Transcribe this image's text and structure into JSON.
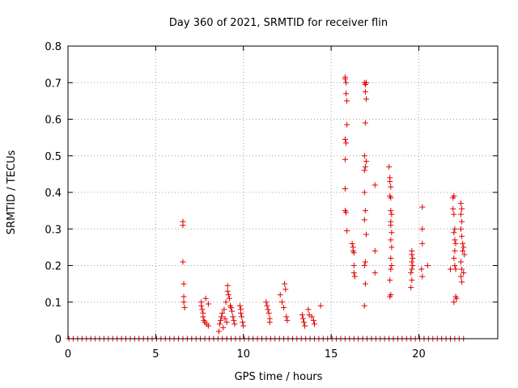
{
  "chart_data": {
    "type": "scatter",
    "title": "Day 360 of 2021, SRMTID for receiver flin",
    "xlabel": "GPS time / hours",
    "ylabel": "SRMTID / TECUs",
    "xlim": [
      0,
      24.5
    ],
    "ylim": [
      0,
      0.8
    ],
    "xticks": [
      0,
      5,
      10,
      15,
      20
    ],
    "xtick_labels": [
      "0",
      "5",
      "10",
      "15",
      "20"
    ],
    "yticks": [
      0,
      0.1,
      0.2,
      0.3,
      0.4,
      0.5,
      0.6,
      0.7,
      0.8
    ],
    "ytick_labels": [
      "0",
      "0.1",
      "0.2",
      "0.3",
      "0.4",
      "0.5",
      "0.6",
      "0.7",
      "0.8"
    ],
    "grid": true,
    "marker": "+",
    "color": "#e00000",
    "series": [
      {
        "name": "SRMTID",
        "zero_baseline": {
          "x_start": 0.05,
          "x_end": 22.6,
          "step": 0.25,
          "y": 0
        },
        "points": [
          [
            6.55,
            0.32
          ],
          [
            6.55,
            0.31
          ],
          [
            6.55,
            0.21
          ],
          [
            6.6,
            0.15
          ],
          [
            6.6,
            0.115
          ],
          [
            6.6,
            0.1
          ],
          [
            6.65,
            0.085
          ],
          [
            7.6,
            0.1
          ],
          [
            7.6,
            0.09
          ],
          [
            7.65,
            0.08
          ],
          [
            7.7,
            0.07
          ],
          [
            7.7,
            0.06
          ],
          [
            7.75,
            0.05
          ],
          [
            7.8,
            0.045
          ],
          [
            7.85,
            0.11
          ],
          [
            7.9,
            0.04
          ],
          [
            8.0,
            0.095
          ],
          [
            8.0,
            0.035
          ],
          [
            8.6,
            0.02
          ],
          [
            8.65,
            0.04
          ],
          [
            8.7,
            0.05
          ],
          [
            8.75,
            0.06
          ],
          [
            8.8,
            0.07
          ],
          [
            8.85,
            0.03
          ],
          [
            8.9,
            0.08
          ],
          [
            8.95,
            0.055
          ],
          [
            9.0,
            0.1
          ],
          [
            9.05,
            0.045
          ],
          [
            9.1,
            0.145
          ],
          [
            9.1,
            0.13
          ],
          [
            9.15,
            0.12
          ],
          [
            9.2,
            0.11
          ],
          [
            9.25,
            0.09
          ],
          [
            9.3,
            0.085
          ],
          [
            9.35,
            0.075
          ],
          [
            9.4,
            0.06
          ],
          [
            9.45,
            0.05
          ],
          [
            9.5,
            0.04
          ],
          [
            9.8,
            0.09
          ],
          [
            9.85,
            0.08
          ],
          [
            9.85,
            0.07
          ],
          [
            9.9,
            0.06
          ],
          [
            9.95,
            0.045
          ],
          [
            10.0,
            0.035
          ],
          [
            11.3,
            0.1
          ],
          [
            11.35,
            0.09
          ],
          [
            11.4,
            0.08
          ],
          [
            11.45,
            0.07
          ],
          [
            11.5,
            0.055
          ],
          [
            11.5,
            0.045
          ],
          [
            12.1,
            0.12
          ],
          [
            12.2,
            0.1
          ],
          [
            12.3,
            0.085
          ],
          [
            12.35,
            0.15
          ],
          [
            12.4,
            0.135
          ],
          [
            12.45,
            0.06
          ],
          [
            12.5,
            0.05
          ],
          [
            13.35,
            0.065
          ],
          [
            13.4,
            0.055
          ],
          [
            13.45,
            0.045
          ],
          [
            13.5,
            0.035
          ],
          [
            13.7,
            0.08
          ],
          [
            13.75,
            0.065
          ],
          [
            13.9,
            0.06
          ],
          [
            14.0,
            0.05
          ],
          [
            14.05,
            0.04
          ],
          [
            14.4,
            0.09
          ],
          [
            15.8,
            0.715
          ],
          [
            15.8,
            0.71
          ],
          [
            15.85,
            0.7
          ],
          [
            15.85,
            0.67
          ],
          [
            15.9,
            0.65
          ],
          [
            15.9,
            0.585
          ],
          [
            15.8,
            0.545
          ],
          [
            15.85,
            0.535
          ],
          [
            15.8,
            0.49
          ],
          [
            15.8,
            0.41
          ],
          [
            15.8,
            0.35
          ],
          [
            15.85,
            0.345
          ],
          [
            15.9,
            0.295
          ],
          [
            16.2,
            0.26
          ],
          [
            16.25,
            0.25
          ],
          [
            16.25,
            0.24
          ],
          [
            16.3,
            0.235
          ],
          [
            16.3,
            0.2
          ],
          [
            16.3,
            0.18
          ],
          [
            16.35,
            0.17
          ],
          [
            16.9,
            0.7
          ],
          [
            16.95,
            0.695
          ],
          [
            17.0,
            0.7
          ],
          [
            16.95,
            0.675
          ],
          [
            17.0,
            0.655
          ],
          [
            16.95,
            0.59
          ],
          [
            16.9,
            0.5
          ],
          [
            16.95,
            0.47
          ],
          [
            16.9,
            0.46
          ],
          [
            17.0,
            0.485
          ],
          [
            16.9,
            0.4
          ],
          [
            16.95,
            0.35
          ],
          [
            16.9,
            0.325
          ],
          [
            17.0,
            0.285
          ],
          [
            16.95,
            0.21
          ],
          [
            16.9,
            0.2
          ],
          [
            16.95,
            0.15
          ],
          [
            16.9,
            0.09
          ],
          [
            17.5,
            0.42
          ],
          [
            17.5,
            0.24
          ],
          [
            17.5,
            0.18
          ],
          [
            18.3,
            0.47
          ],
          [
            18.35,
            0.44
          ],
          [
            18.35,
            0.43
          ],
          [
            18.4,
            0.415
          ],
          [
            18.35,
            0.39
          ],
          [
            18.4,
            0.385
          ],
          [
            18.4,
            0.35
          ],
          [
            18.45,
            0.34
          ],
          [
            18.4,
            0.32
          ],
          [
            18.4,
            0.31
          ],
          [
            18.45,
            0.29
          ],
          [
            18.4,
            0.27
          ],
          [
            18.45,
            0.25
          ],
          [
            18.4,
            0.22
          ],
          [
            18.45,
            0.2
          ],
          [
            18.4,
            0.19
          ],
          [
            18.35,
            0.16
          ],
          [
            18.4,
            0.12
          ],
          [
            18.35,
            0.115
          ],
          [
            19.6,
            0.24
          ],
          [
            19.6,
            0.23
          ],
          [
            19.65,
            0.22
          ],
          [
            19.6,
            0.21
          ],
          [
            19.65,
            0.2
          ],
          [
            19.6,
            0.19
          ],
          [
            19.55,
            0.18
          ],
          [
            19.6,
            0.16
          ],
          [
            19.55,
            0.14
          ],
          [
            20.2,
            0.36
          ],
          [
            20.2,
            0.3
          ],
          [
            20.2,
            0.26
          ],
          [
            20.15,
            0.19
          ],
          [
            20.2,
            0.17
          ],
          [
            20.5,
            0.2
          ],
          [
            21.8,
            0.19
          ],
          [
            21.95,
            0.385
          ],
          [
            22.0,
            0.39
          ],
          [
            21.95,
            0.355
          ],
          [
            22.0,
            0.34
          ],
          [
            22.05,
            0.3
          ],
          [
            22.0,
            0.29
          ],
          [
            22.05,
            0.27
          ],
          [
            22.1,
            0.26
          ],
          [
            22.05,
            0.24
          ],
          [
            22.0,
            0.22
          ],
          [
            22.05,
            0.2
          ],
          [
            22.1,
            0.19
          ],
          [
            22.1,
            0.115
          ],
          [
            22.15,
            0.11
          ],
          [
            22.0,
            0.1
          ],
          [
            22.4,
            0.37
          ],
          [
            22.45,
            0.355
          ],
          [
            22.4,
            0.34
          ],
          [
            22.45,
            0.32
          ],
          [
            22.4,
            0.3
          ],
          [
            22.45,
            0.28
          ],
          [
            22.5,
            0.26
          ],
          [
            22.55,
            0.25
          ],
          [
            22.5,
            0.24
          ],
          [
            22.6,
            0.23
          ],
          [
            22.4,
            0.21
          ],
          [
            22.45,
            0.19
          ],
          [
            22.55,
            0.18
          ],
          [
            22.4,
            0.17
          ],
          [
            22.45,
            0.155
          ]
        ]
      }
    ]
  }
}
